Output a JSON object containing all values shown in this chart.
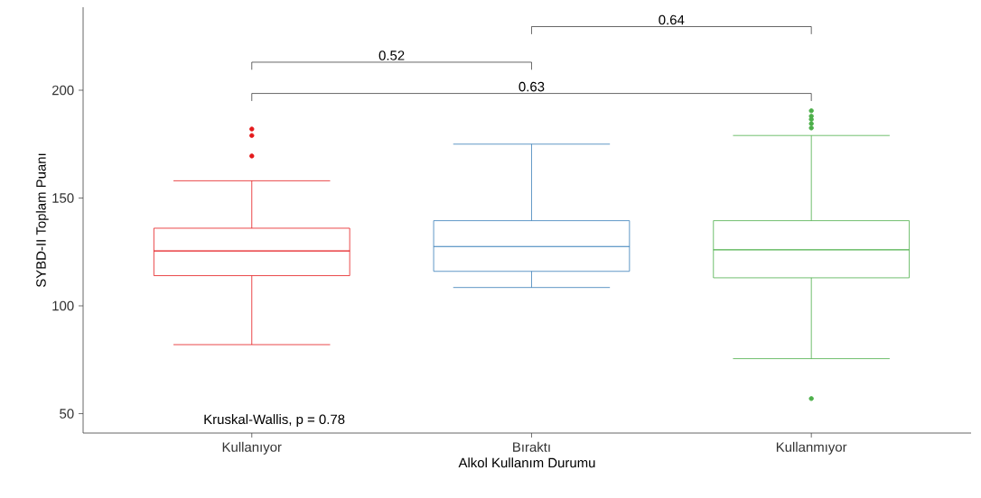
{
  "chart_data": {
    "type": "box",
    "xlabel": "Alkol Kullanım Durumu",
    "ylabel": "SYBD-II Toplam Puanı",
    "categories": [
      "Kullanıyor",
      "Bıraktı",
      "Kullanmıyor"
    ],
    "colors": [
      "#e41a1c",
      "#377eb8",
      "#4daf4a"
    ],
    "boxes": [
      {
        "low": 82,
        "q1": 114,
        "median": 125.5,
        "q3": 136,
        "high": 158,
        "outliers": [
          182,
          179,
          169.5
        ]
      },
      {
        "low": 108.5,
        "q1": 116,
        "median": 127.5,
        "q3": 139.5,
        "high": 175
      },
      {
        "low": 75.5,
        "q1": 113,
        "median": 126,
        "q3": 139.5,
        "high": 179,
        "outliers": [
          190.5,
          188,
          186.5,
          184.5,
          182.5,
          57
        ]
      }
    ],
    "ylim": [
      41,
      238.5
    ],
    "yticks": [
      50,
      100,
      150,
      200
    ],
    "annotations": [
      "0.52",
      "0.64",
      "0.63",
      "Kruskal-Wallis, p = 0.78"
    ]
  }
}
